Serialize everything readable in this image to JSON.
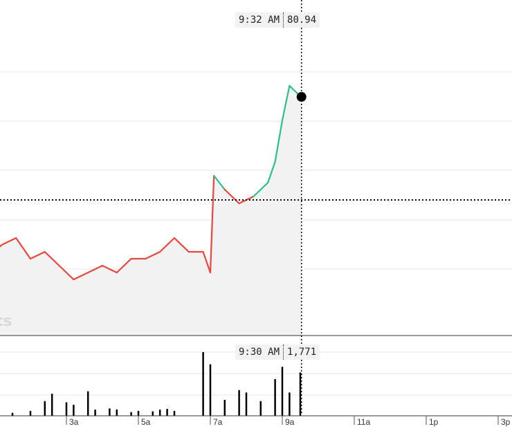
{
  "chart_data": [
    {
      "type": "line",
      "x": [
        "12:00 AM",
        "12:24 AM",
        "12:48 AM",
        "1:12 AM",
        "1:36 AM",
        "2:00 AM",
        "2:24 AM",
        "2:48 AM",
        "3:12 AM",
        "3:36 AM",
        "4:00 AM",
        "4:24 AM",
        "4:48 AM",
        "5:12 AM",
        "5:36 AM",
        "6:00 AM",
        "6:24 AM",
        "6:48 AM",
        "7:00 AM",
        "7:06 AM",
        "7:24 AM",
        "7:48 AM",
        "8:12 AM",
        "8:36 AM",
        "8:48 AM",
        "9:00 AM",
        "9:12 AM",
        "9:24 AM",
        "9:32 AM"
      ],
      "y": [
        78.6,
        78.7,
        78.6,
        78.8,
        78.9,
        78.6,
        78.7,
        78.5,
        78.3,
        78.4,
        78.5,
        78.4,
        78.6,
        78.6,
        78.7,
        78.9,
        78.7,
        78.7,
        78.4,
        79.8,
        79.6,
        79.4,
        79.5,
        79.7,
        80.0,
        80.6,
        81.1,
        81.0,
        80.94
      ],
      "series": [
        {
          "values_ref": "y"
        }
      ],
      "previous_close": 79.45,
      "color_up": "#2bbf8a",
      "color_down": "#e8453c",
      "tooltip": {
        "time": "9:32 AM",
        "value": "80.94"
      }
    },
    {
      "type": "bar",
      "x": [
        "12:30 AM",
        "1:00 AM",
        "1:30 AM",
        "2:00 AM",
        "2:24 AM",
        "2:36 AM",
        "3:00 AM",
        "3:12 AM",
        "3:36 AM",
        "3:48 AM",
        "4:12 AM",
        "4:24 AM",
        "4:48 AM",
        "5:00 AM",
        "5:24 AM",
        "5:36 AM",
        "5:48 AM",
        "6:00 AM",
        "6:48 AM",
        "7:00 AM",
        "7:24 AM",
        "7:48 AM",
        "8:00 AM",
        "8:24 AM",
        "8:48 AM",
        "9:00 AM",
        "9:12 AM",
        "9:30 AM"
      ],
      "values": [
        80,
        100,
        120,
        200,
        600,
        900,
        550,
        450,
        1000,
        250,
        300,
        260,
        150,
        200,
        180,
        250,
        280,
        200,
        2600,
        2100,
        650,
        1050,
        950,
        600,
        1500,
        2000,
        950,
        1771
      ],
      "tooltip": {
        "time": "9:30 AM",
        "value": "1,771"
      }
    }
  ],
  "x_axis": {
    "ticks": [
      "3a",
      "5a",
      "7a",
      "9a",
      "11a",
      "1p",
      "3p"
    ]
  },
  "watermark": "ts"
}
